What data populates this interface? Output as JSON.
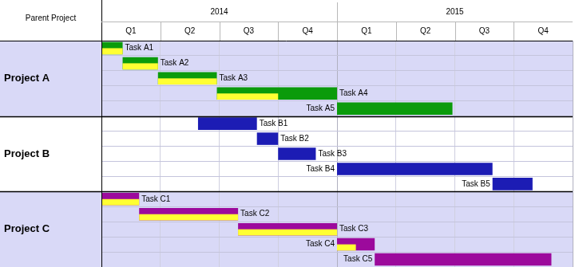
{
  "chart_data": {
    "type": "bar",
    "orientation": "horizontal",
    "ylabel": "Parent Project",
    "xlim": [
      2014,
      2016
    ],
    "xticks": [
      {
        "value": 2014.125,
        "label": "Q1"
      },
      {
        "value": 2014.375,
        "label": "Q2"
      },
      {
        "value": 2014.625,
        "label": "Q3"
      },
      {
        "value": 2014.875,
        "label": "Q4"
      },
      {
        "value": 2015.125,
        "label": "Q1"
      },
      {
        "value": 2015.375,
        "label": "Q2"
      },
      {
        "value": 2015.625,
        "label": "Q3"
      },
      {
        "value": 2015.875,
        "label": "Q4"
      }
    ],
    "x2lim": [
      2014,
      2016
    ],
    "x2ticks": [
      {
        "value": 2014.5,
        "label": "2014"
      },
      {
        "value": 2015.5,
        "label": "2015"
      }
    ],
    "grid": true,
    "tick_labels": "x",
    "series": [
      {
        "name": "Project A",
        "color": "#0b9b0b",
        "categories": [
          "Task A1",
          "Task A2",
          "Task A3",
          "Task A4",
          "Task A5"
        ],
        "values": [
          [
            2014,
            2014.09
          ],
          [
            2014.09,
            2014.24
          ],
          [
            2014.24,
            2014.49
          ],
          [
            2014.49,
            2015
          ],
          [
            2015,
            2015.49
          ]
        ],
        "progress": [
          2014.09,
          2014.24,
          2014.49,
          2014.75,
          null
        ]
      },
      {
        "name": "Project B",
        "color": "#1c1cb4",
        "categories": [
          "Task B1",
          "Task B2",
          "Task B3",
          "Task B4",
          "Task B5"
        ],
        "values": [
          [
            2014.41,
            2014.66
          ],
          [
            2014.66,
            2014.75
          ],
          [
            2014.75,
            2014.91
          ],
          [
            2015,
            2015.66
          ],
          [
            2015.66,
            2015.83
          ]
        ],
        "progress": [
          null,
          null,
          null,
          null,
          null
        ]
      },
      {
        "name": "Project C",
        "color": "#9c0a9c",
        "categories": [
          "Task C1",
          "Task C2",
          "Task C3",
          "Task C4",
          "Task C5"
        ],
        "values": [
          [
            2014,
            2014.16
          ],
          [
            2014.16,
            2014.58
          ],
          [
            2014.58,
            2015
          ],
          [
            2015,
            2015.16
          ],
          [
            2015.16,
            2015.91
          ]
        ],
        "progress": [
          2014.16,
          2014.58,
          2015,
          2015.08,
          null
        ]
      }
    ]
  }
}
